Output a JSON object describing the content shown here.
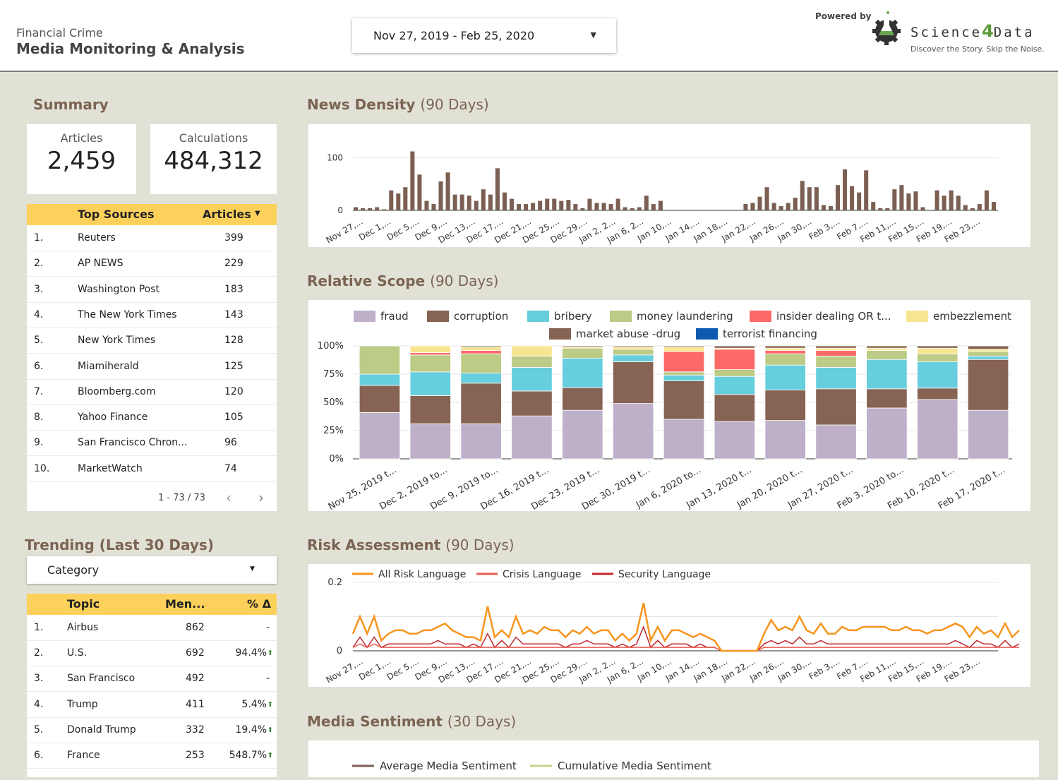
{
  "header": {
    "title_line1": "Financial Crime",
    "title_line2": "Media Monitoring & Analysis",
    "date_range": "Nov 27, 2019 - Feb 25, 2020",
    "powered_by": "Powered by",
    "logo_text_left": "Science",
    "logo_text_num": "4",
    "logo_text_right": "Data",
    "tagline": "Discover the Story. Skip the Noise."
  },
  "summary": {
    "title": "Summary",
    "articles_label": "Articles",
    "articles_value": "2,459",
    "calc_label": "Calculations",
    "calc_value": "484,312"
  },
  "top_sources": {
    "col_source": "Top Sources",
    "col_articles": "Articles",
    "rows": [
      {
        "rank": "1.",
        "name": "Reuters",
        "count": "399"
      },
      {
        "rank": "2.",
        "name": "AP NEWS",
        "count": "229"
      },
      {
        "rank": "3.",
        "name": "Washington Post",
        "count": "183"
      },
      {
        "rank": "4.",
        "name": "The New York Times",
        "count": "143"
      },
      {
        "rank": "5.",
        "name": "New York Times",
        "count": "128"
      },
      {
        "rank": "6.",
        "name": "Miamiherald",
        "count": "125"
      },
      {
        "rank": "7.",
        "name": "Bloomberg.com",
        "count": "120"
      },
      {
        "rank": "8.",
        "name": "Yahoo Finance",
        "count": "105"
      },
      {
        "rank": "9.",
        "name": "San Francisco Chron...",
        "count": "96"
      },
      {
        "rank": "10.",
        "name": "MarketWatch",
        "count": "74"
      }
    ],
    "pager": "1 - 73 / 73"
  },
  "trending": {
    "title": "Trending (Last 30 Days)",
    "dropdown": "Category",
    "col_topic": "Topic",
    "col_mentions": "Men...",
    "col_pct": "% Δ",
    "rows": [
      {
        "rank": "1.",
        "topic": "Airbus",
        "mentions": "862",
        "pct": "-",
        "up": false
      },
      {
        "rank": "2.",
        "topic": "U.S.",
        "mentions": "692",
        "pct": "94.4%",
        "up": true
      },
      {
        "rank": "3.",
        "topic": "San Francisco",
        "mentions": "492",
        "pct": "-",
        "up": false
      },
      {
        "rank": "4.",
        "topic": "Trump",
        "mentions": "411",
        "pct": "5.4%",
        "up": true
      },
      {
        "rank": "5.",
        "topic": "Donald Trump",
        "mentions": "332",
        "pct": "19.4%",
        "up": true
      },
      {
        "rank": "6.",
        "topic": "France",
        "mentions": "253",
        "pct": "548.7%",
        "up": true
      }
    ]
  },
  "sections": {
    "density_title": "News Density",
    "density_sub": "(90 Days)",
    "scope_title": "Relative Scope",
    "scope_sub": "(90 Days)",
    "risk_title": "Risk Assessment",
    "risk_sub": "(90 Days)",
    "sentiment_title": "Media Sentiment",
    "sentiment_sub": "(30 Days)"
  },
  "colors": {
    "brown": "#7b5f52",
    "gold": "#fcd15b",
    "green_up": "#3a8a3a"
  },
  "chart_data": [
    {
      "name": "news_density",
      "type": "bar",
      "x_tick_labels": [
        "Nov 27,...",
        "Dec 1,...",
        "Dec 5,...",
        "Dec 9,...",
        "Dec 13,...",
        "Dec 17,...",
        "Dec 21,...",
        "Dec 25,...",
        "Dec 29,...",
        "Jan 2, 2...",
        "Jan 6, 2...",
        "Jan 10,...",
        "Jan 14,...",
        "Jan 18,...",
        "Jan 22,...",
        "Jan 26,...",
        "Jan 30,...",
        "Feb 3,...",
        "Feb 7,...",
        "Feb 11,...",
        "Feb 15,...",
        "Feb 19,...",
        "Feb 23,..."
      ],
      "y_ticks": [
        "0",
        "100"
      ],
      "ylim": [
        0,
        110
      ],
      "values": [
        6,
        4,
        4,
        6,
        2,
        38,
        32,
        44,
        112,
        68,
        18,
        12,
        55,
        72,
        30,
        30,
        28,
        18,
        40,
        30,
        80,
        34,
        22,
        12,
        12,
        14,
        18,
        22,
        22,
        18,
        20,
        12,
        4,
        22,
        14,
        14,
        12,
        22,
        6,
        4,
        6,
        28,
        12,
        18,
        0,
        0,
        0,
        0,
        0,
        0,
        0,
        0,
        0,
        0,
        0,
        12,
        14,
        26,
        44,
        14,
        8,
        14,
        24,
        56,
        44,
        44,
        10,
        8,
        48,
        78,
        46,
        34,
        76,
        16,
        4,
        4,
        40,
        48,
        32,
        36,
        6,
        0,
        38,
        28,
        38,
        28,
        10,
        4,
        12,
        38,
        16
      ]
    },
    {
      "name": "relative_scope",
      "type": "bar",
      "stacked": true,
      "y_ticks": [
        "0%",
        "25%",
        "50%",
        "75%",
        "100%"
      ],
      "categories": [
        "Nov 25, 2019 t...",
        "Dec 2, 2019 to...",
        "Dec 9, 2019 to...",
        "Dec 16, 2019 t...",
        "Dec 23, 2019 t...",
        "Dec 30, 2019 t...",
        "Jan 6, 2020 to...",
        "Jan 13, 2020 t...",
        "Jan 20, 2020 t...",
        "Jan 27, 2020 t...",
        "Feb 3, 2020 to...",
        "Feb 10, 2020 t...",
        "Feb 17, 2020 t..."
      ],
      "series": [
        {
          "name": "fraud",
          "color": "#bdb0c8",
          "values": [
            41,
            31,
            31,
            38,
            43,
            49,
            35,
            33,
            34,
            30,
            45,
            52,
            43
          ]
        },
        {
          "name": "corruption",
          "color": "#866353",
          "values": [
            24,
            25,
            36,
            22,
            20,
            37,
            34,
            24,
            27,
            32,
            17,
            10,
            45
          ]
        },
        {
          "name": "bribery",
          "color": "#66cedd",
          "values": [
            10,
            21,
            9,
            21,
            26,
            6,
            5,
            16,
            22,
            19,
            26,
            23,
            3
          ]
        },
        {
          "name": "money laundering",
          "color": "#bccb85",
          "values": [
            25,
            15,
            17,
            10,
            9,
            5,
            3,
            6,
            10,
            10,
            8,
            7,
            4
          ]
        },
        {
          "name": "insider dealing OR t...",
          "color": "#fd6969",
          "values": [
            0,
            2,
            3,
            0,
            0,
            0,
            18,
            18,
            3,
            5,
            0,
            0,
            0
          ]
        },
        {
          "name": "embezzlement",
          "color": "#f8e592",
          "values": [
            0,
            6,
            3,
            9,
            1,
            2,
            4,
            1,
            2,
            2,
            2,
            5,
            2
          ]
        },
        {
          "name": "market abuse -drug",
          "color": "#866353",
          "values": [
            0,
            0,
            1,
            0,
            1,
            1,
            1,
            2,
            2,
            2,
            2,
            2,
            3
          ]
        },
        {
          "name": "terrorist financing",
          "color": "#0e5ab1",
          "values": [
            0,
            0,
            0,
            0,
            0,
            0,
            0,
            0,
            0,
            0,
            0,
            0,
            0
          ]
        }
      ]
    },
    {
      "name": "risk_assessment",
      "type": "line",
      "y_ticks": [
        "0",
        "0.2"
      ],
      "ylim": [
        0,
        0.2
      ],
      "x_tick_labels": [
        "Nov 27,...",
        "Dec 1,...",
        "Dec 5,...",
        "Dec 9,...",
        "Dec 13,...",
        "Dec 17,...",
        "Dec 21,...",
        "Dec 25,...",
        "Dec 29,...",
        "Jan 2, 2...",
        "Jan 6, 2...",
        "Jan 10,...",
        "Jan 14,...",
        "Jan 18,...",
        "Jan 22,...",
        "Jan 26,...",
        "Jan 30,...",
        "Feb 3,...",
        "Feb 7,...",
        "Feb 11,...",
        "Feb 15,...",
        "Feb 19,...",
        "Feb 23,..."
      ],
      "series": [
        {
          "name": "All Risk Language",
          "color": "#f7941d",
          "values": [
            0.05,
            0.1,
            0.05,
            0.1,
            0.03,
            0.05,
            0.06,
            0.06,
            0.05,
            0.05,
            0.06,
            0.06,
            0.07,
            0.08,
            0.06,
            0.05,
            0.04,
            0.04,
            0.03,
            0.13,
            0.04,
            0.06,
            0.04,
            0.1,
            0.05,
            0.06,
            0.05,
            0.07,
            0.06,
            0.06,
            0.04,
            0.06,
            0.05,
            0.07,
            0.05,
            0.06,
            0.06,
            0.03,
            0.05,
            0.03,
            0.05,
            0.14,
            0.03,
            0.07,
            0.03,
            0.06,
            0.06,
            0.05,
            0.04,
            0.05,
            0.04,
            0.03,
            0.0,
            0.0,
            0.0,
            0.0,
            0.0,
            0.0,
            0.05,
            0.09,
            0.06,
            0.07,
            0.06,
            0.1,
            0.06,
            0.05,
            0.08,
            0.05,
            0.05,
            0.07,
            0.06,
            0.06,
            0.07,
            0.07,
            0.07,
            0.07,
            0.06,
            0.06,
            0.07,
            0.06,
            0.06,
            0.05,
            0.06,
            0.06,
            0.07,
            0.08,
            0.07,
            0.04,
            0.07,
            0.05,
            0.06,
            0.04,
            0.08,
            0.04,
            0.06
          ]
        },
        {
          "name": "Crisis Language",
          "color": "#e95b4f",
          "values": [
            0.01,
            0.02,
            0.01,
            0.02,
            0.01,
            0.01,
            0.01,
            0.01,
            0.01,
            0.01,
            0.01,
            0.01,
            0.01,
            0.01,
            0.01,
            0.01,
            0.01,
            0.01,
            0.01,
            0.01,
            0.01,
            0.01,
            0.01,
            0.01,
            0.01,
            0.01,
            0.01,
            0.01,
            0.01,
            0.01,
            0.01,
            0.01,
            0.01,
            0.01,
            0.01,
            0.01,
            0.01,
            0.01,
            0.01,
            0.01,
            0.01,
            0.01,
            0.01,
            0.01,
            0.01,
            0.01,
            0.01,
            0.01,
            0.01,
            0.01,
            0.01,
            0.01,
            0,
            0,
            0,
            0,
            0,
            0,
            0.01,
            0.01,
            0.01,
            0.01,
            0.01,
            0.01,
            0.01,
            0.01,
            0.01,
            0.01,
            0.01,
            0.01,
            0.01,
            0.01,
            0.01,
            0.01,
            0.01,
            0.01,
            0.01,
            0.01,
            0.01,
            0.01,
            0.01,
            0.01,
            0.01,
            0.01,
            0.01,
            0.01,
            0.01,
            0.01,
            0.01,
            0.01,
            0.01,
            0.01,
            0.01,
            0.01,
            0.01
          ]
        },
        {
          "name": "Security Language",
          "color": "#c0282d",
          "values": [
            0.01,
            0.04,
            0.01,
            0.04,
            0.01,
            0.02,
            0.02,
            0.02,
            0.02,
            0.02,
            0.02,
            0.02,
            0.03,
            0.02,
            0.02,
            0.02,
            0.01,
            0.02,
            0.01,
            0.05,
            0.01,
            0.03,
            0.01,
            0.04,
            0.02,
            0.02,
            0.02,
            0.02,
            0.02,
            0.02,
            0.01,
            0.02,
            0.02,
            0.03,
            0.02,
            0.02,
            0.02,
            0.01,
            0.02,
            0.01,
            0.02,
            0.07,
            0.01,
            0.03,
            0.01,
            0.02,
            0.02,
            0.02,
            0.01,
            0.02,
            0.01,
            0.01,
            0,
            0,
            0,
            0,
            0,
            0,
            0.02,
            0.03,
            0.02,
            0.03,
            0.02,
            0.04,
            0.02,
            0.02,
            0.03,
            0.02,
            0.02,
            0.02,
            0.02,
            0.02,
            0.02,
            0.02,
            0.02,
            0.02,
            0.02,
            0.02,
            0.02,
            0.02,
            0.02,
            0.02,
            0.02,
            0.02,
            0.02,
            0.03,
            0.02,
            0.01,
            0.03,
            0.02,
            0.02,
            0.01,
            0.03,
            0.01,
            0.02
          ]
        }
      ]
    },
    {
      "name": "media_sentiment",
      "type": "line",
      "series": [
        {
          "name": "Average Media Sentiment",
          "color": "#7b5f52",
          "values": []
        },
        {
          "name": "Cumulative Media Sentiment",
          "color": "#c8d28a",
          "values": []
        }
      ]
    }
  ]
}
